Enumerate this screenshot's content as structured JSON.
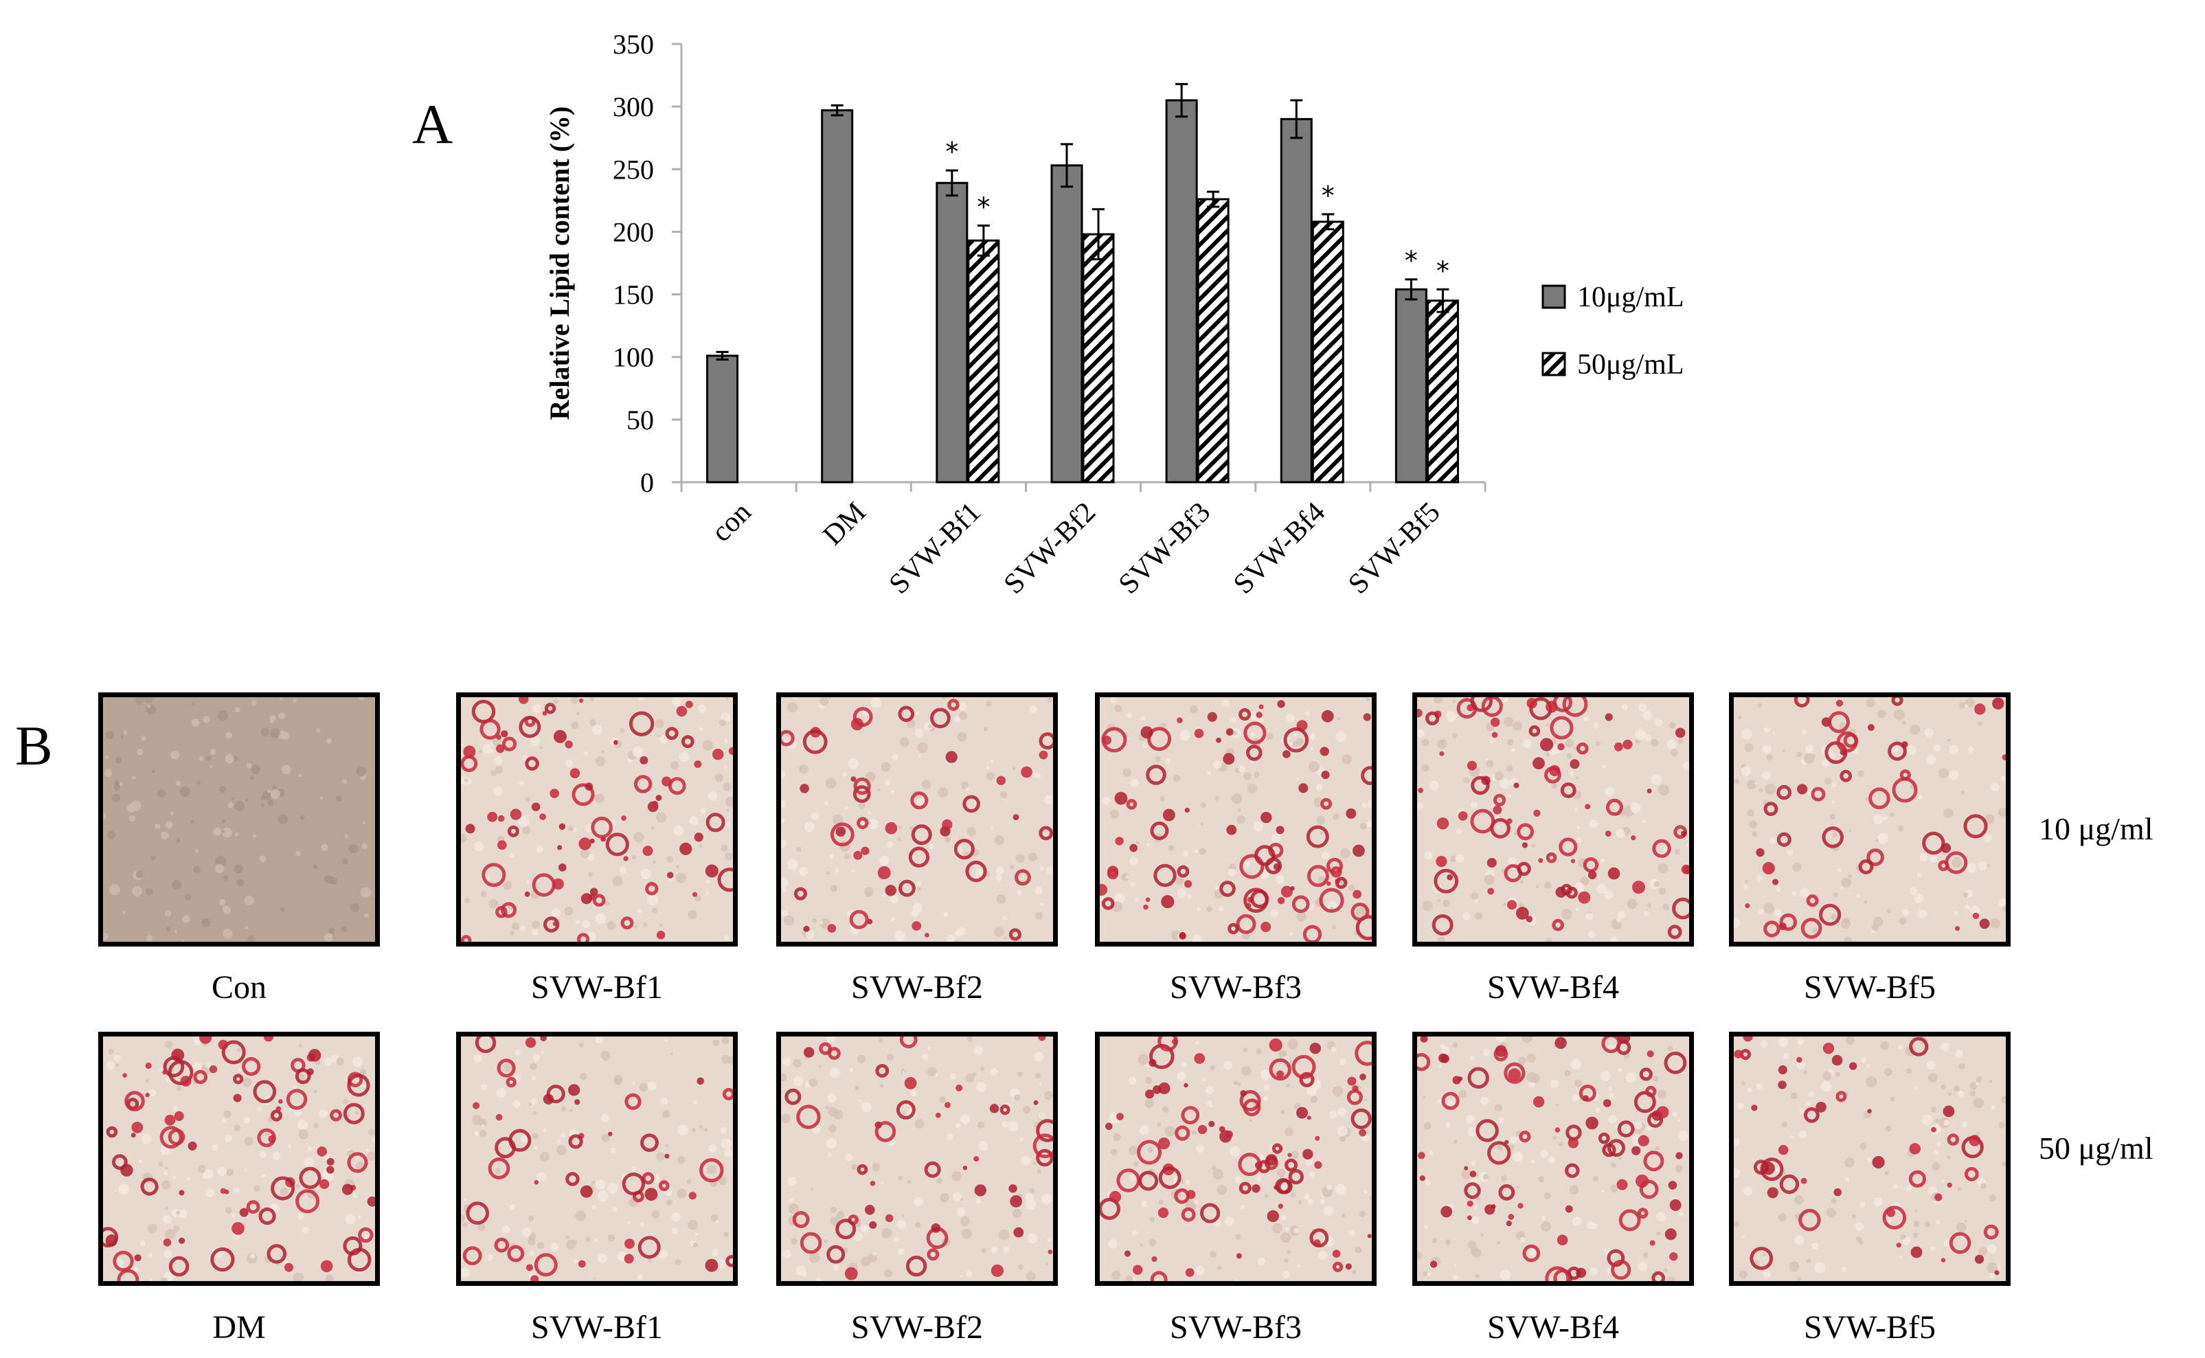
{
  "panels": {
    "a_label": "A",
    "b_label": "B"
  },
  "chart_data": {
    "type": "bar",
    "categories": [
      "con",
      "DM",
      "SVW-Bf1",
      "SVW-Bf2",
      "SVW-Bf3",
      "SVW-Bf4",
      "SVW-Bf5"
    ],
    "ylabel": "Relative Lipid content (%)",
    "xlabel": "",
    "ylim": [
      0,
      350
    ],
    "yticks": [
      0,
      50,
      100,
      150,
      200,
      250,
      300,
      350
    ],
    "grid": false,
    "legend_position": "right",
    "series": [
      {
        "name": "10μg/mL",
        "fill": "solid-gray",
        "color": "#7a7a7a",
        "values": [
          101,
          297,
          239,
          253,
          305,
          290,
          154
        ],
        "errors": [
          3,
          4,
          10,
          17,
          13,
          15,
          8
        ],
        "significant": [
          false,
          false,
          true,
          false,
          false,
          false,
          true
        ]
      },
      {
        "name": "50μg/mL",
        "fill": "diagonal-hatch",
        "color": "#000000",
        "values": [
          null,
          null,
          193,
          198,
          226,
          208,
          145
        ],
        "errors": [
          null,
          null,
          12,
          20,
          6,
          6,
          9
        ],
        "significant": [
          false,
          false,
          true,
          false,
          false,
          true,
          true
        ]
      }
    ],
    "significance_marker": "*"
  },
  "micrographs": {
    "row1_label": "10 μg/ml",
    "row2_label": "50 μg/ml",
    "row1": [
      {
        "caption": "Con",
        "stain": "low"
      },
      {
        "caption": "SVW-Bf1",
        "stain": "high"
      },
      {
        "caption": "SVW-Bf2",
        "stain": "medium"
      },
      {
        "caption": "SVW-Bf3",
        "stain": "high"
      },
      {
        "caption": "SVW-Bf4",
        "stain": "high"
      },
      {
        "caption": "SVW-Bf5",
        "stain": "medium"
      }
    ],
    "row2": [
      {
        "caption": "DM",
        "stain": "high"
      },
      {
        "caption": "SVW-Bf1",
        "stain": "medium"
      },
      {
        "caption": "SVW-Bf2",
        "stain": "medium"
      },
      {
        "caption": "SVW-Bf3",
        "stain": "high"
      },
      {
        "caption": "SVW-Bf4",
        "stain": "high"
      },
      {
        "caption": "SVW-Bf5",
        "stain": "medium"
      }
    ]
  }
}
